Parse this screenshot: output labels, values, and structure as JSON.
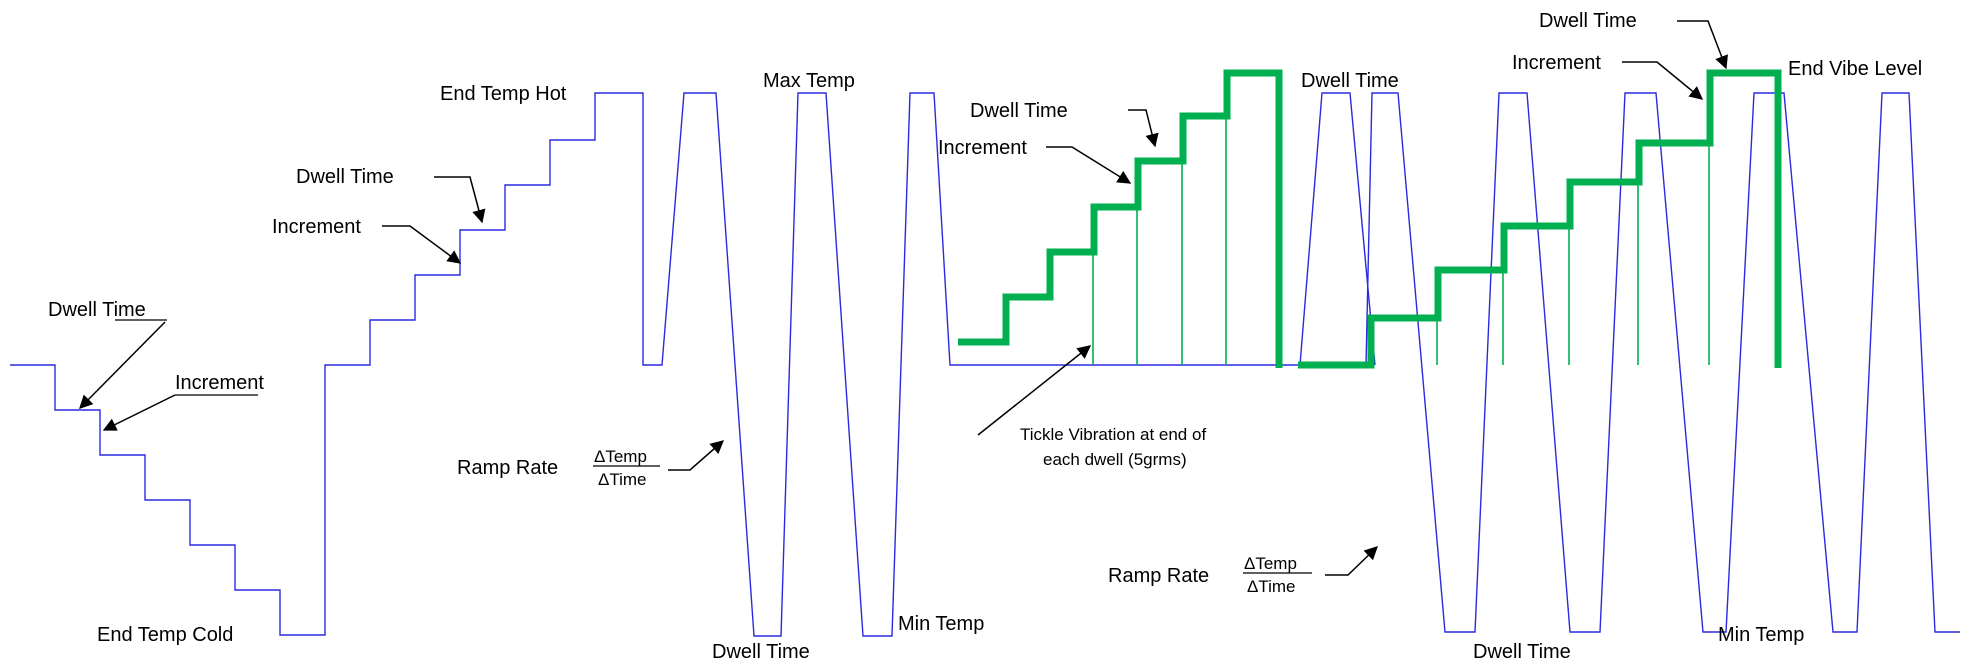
{
  "colors": {
    "thermal_profile": "#2a2ae0",
    "vibration_profile": "#00b050",
    "annotation": "#000000"
  },
  "labels": {
    "dwell_time": "Dwell Time",
    "increment": "Increment",
    "end_temp_cold": "End Temp Cold",
    "end_temp_hot": "End Temp Hot",
    "max_temp": "Max Temp",
    "min_temp": "Min Temp",
    "ramp_rate": "Ramp Rate",
    "delta_temp": "ΔTemp",
    "delta_time": "ΔTime",
    "end_vibe_level": "End Vibe Level",
    "tickle_line1": "Tickle Vibration at end of",
    "tickle_line2": "each dwell  (5grms)"
  },
  "left_dwell_label": {
    "prefix": "Dwell ",
    "underlined": "Time"
  }
}
